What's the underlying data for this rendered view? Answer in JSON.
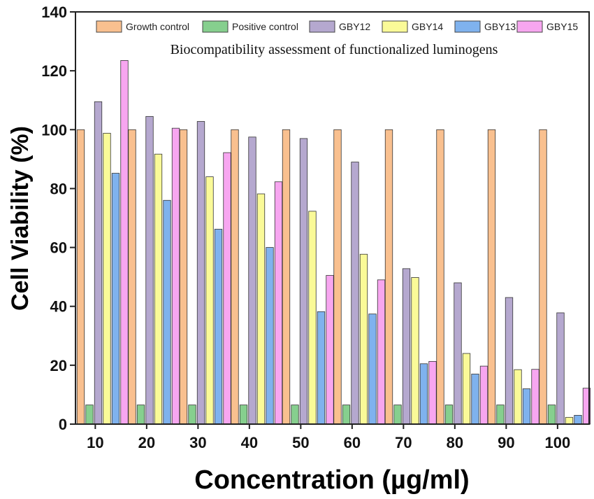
{
  "chart_data": {
    "type": "bar",
    "title": "Biocompatibility assessment of functionalized luminogens",
    "xlabel": "Concentration (µg/ml)",
    "ylabel": "Cell Viability (%)",
    "ylim": [
      0,
      140
    ],
    "yticks": [
      0,
      20,
      40,
      60,
      80,
      100,
      120,
      140
    ],
    "categories": [
      "10",
      "20",
      "30",
      "40",
      "50",
      "60",
      "70",
      "80",
      "90",
      "100"
    ],
    "legend_position": "top",
    "grid": false,
    "series": [
      {
        "name": "Growth control",
        "color": "#f9c08f",
        "values": [
          100,
          100,
          100,
          100,
          100,
          100,
          100,
          100,
          100,
          100
        ]
      },
      {
        "name": "Positive control",
        "color": "#86cf8e",
        "values": [
          6.5,
          6.5,
          6.5,
          6.5,
          6.5,
          6.5,
          6.5,
          6.5,
          6.5,
          6.5
        ]
      },
      {
        "name": "GBY12",
        "color": "#b5a8cf",
        "values": [
          109.5,
          104.5,
          102.8,
          97.5,
          97,
          89,
          52.8,
          48,
          43,
          37.8
        ]
      },
      {
        "name": "GBY14",
        "color": "#fafa98",
        "values": [
          98.8,
          91.7,
          84,
          78.2,
          72.3,
          57.7,
          49.8,
          24,
          18.5,
          2.3
        ]
      },
      {
        "name": "GBY13",
        "color": "#7fb2ee",
        "values": [
          85.2,
          76,
          66.2,
          60,
          38.2,
          37.4,
          20.5,
          17,
          12,
          3
        ]
      },
      {
        "name": "GBY15",
        "color": "#f7a6f0",
        "values": [
          123.5,
          100.5,
          92.2,
          82.3,
          50.5,
          49,
          21.3,
          19.7,
          18.6,
          12.2
        ]
      }
    ]
  }
}
